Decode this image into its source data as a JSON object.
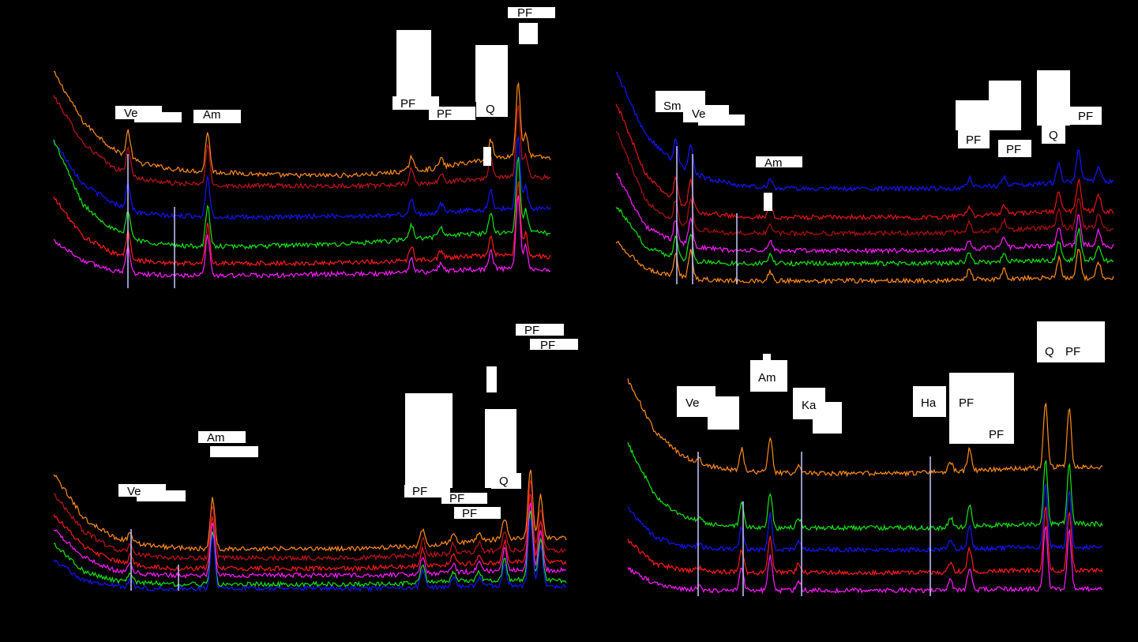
{
  "chart_data": [
    {
      "type": "line",
      "panel": "top-left",
      "series": [
        {
          "color": "#ff8c1a",
          "values": [
            0.92,
            0.55,
            0.35,
            0.24,
            0.2,
            0.18,
            0.17,
            0.16,
            0.15,
            0.15,
            0.15,
            0.16,
            0.18,
            0.2,
            0.24,
            0.28,
            0.3,
            0.28
          ]
        },
        {
          "color": "#c0141c",
          "values": [
            0.8,
            0.45,
            0.27,
            0.18,
            0.15,
            0.14,
            0.13,
            0.13,
            0.13,
            0.13,
            0.13,
            0.13,
            0.14,
            0.15,
            0.17,
            0.19,
            0.2,
            0.19
          ]
        },
        {
          "color": "#1414ff",
          "values": [
            0.66,
            0.34,
            0.2,
            0.12,
            0.1,
            0.1,
            0.09,
            0.09,
            0.09,
            0.1,
            0.1,
            0.1,
            0.11,
            0.12,
            0.14,
            0.15,
            0.16,
            0.15
          ]
        },
        {
          "color": "#14e614",
          "values": [
            0.88,
            0.4,
            0.22,
            0.13,
            0.1,
            0.09,
            0.09,
            0.09,
            0.1,
            0.1,
            0.11,
            0.12,
            0.14,
            0.16,
            0.18,
            0.19,
            0.2,
            0.19
          ]
        },
        {
          "color": "#ff1a1a",
          "values": [
            0.56,
            0.27,
            0.15,
            0.09,
            0.07,
            0.07,
            0.07,
            0.07,
            0.07,
            0.07,
            0.08,
            0.08,
            0.09,
            0.1,
            0.12,
            0.13,
            0.13,
            0.12
          ]
        },
        {
          "color": "#ff1aff",
          "values": [
            0.3,
            0.15,
            0.08,
            0.05,
            0.04,
            0.04,
            0.04,
            0.04,
            0.04,
            0.05,
            0.05,
            0.05,
            0.06,
            0.07,
            0.08,
            0.09,
            0.09,
            0.08
          ]
        }
      ],
      "peak_labels": [
        "Ve",
        "Am",
        "PF",
        "PF",
        "Q",
        "PF"
      ]
    },
    {
      "type": "line",
      "panel": "top-right",
      "series": [
        {
          "color": "#1414ff",
          "values": [
            0.95,
            0.5,
            0.3,
            0.2,
            0.15,
            0.13,
            0.12,
            0.12,
            0.12,
            0.12,
            0.12,
            0.12,
            0.13,
            0.14,
            0.15,
            0.16,
            0.18,
            0.17
          ]
        },
        {
          "color": "#e61414",
          "values": [
            0.9,
            0.4,
            0.2,
            0.12,
            0.1,
            0.09,
            0.09,
            0.09,
            0.09,
            0.09,
            0.09,
            0.09,
            0.1,
            0.11,
            0.12,
            0.13,
            0.14,
            0.13
          ]
        },
        {
          "color": "#b01010",
          "values": [
            0.8,
            0.3,
            0.15,
            0.09,
            0.07,
            0.07,
            0.07,
            0.07,
            0.07,
            0.07,
            0.07,
            0.07,
            0.08,
            0.09,
            0.1,
            0.11,
            0.11,
            0.1
          ]
        },
        {
          "color": "#ff1aff",
          "values": [
            0.6,
            0.22,
            0.11,
            0.07,
            0.05,
            0.05,
            0.05,
            0.05,
            0.05,
            0.05,
            0.05,
            0.05,
            0.06,
            0.07,
            0.08,
            0.08,
            0.09,
            0.08
          ]
        },
        {
          "color": "#14e614",
          "values": [
            0.45,
            0.16,
            0.08,
            0.05,
            0.04,
            0.04,
            0.04,
            0.04,
            0.04,
            0.04,
            0.04,
            0.04,
            0.05,
            0.05,
            0.06,
            0.06,
            0.07,
            0.06
          ]
        },
        {
          "color": "#ff8c1a",
          "values": [
            0.3,
            0.1,
            0.05,
            0.03,
            0.02,
            0.02,
            0.02,
            0.02,
            0.02,
            0.02,
            0.02,
            0.02,
            0.03,
            0.03,
            0.04,
            0.04,
            0.04,
            0.04
          ]
        }
      ],
      "peak_labels": [
        "Sm",
        "Ve",
        "Am",
        "PF",
        "PF",
        "Q",
        "PF"
      ]
    },
    {
      "type": "line",
      "panel": "bottom-left",
      "series": [
        {
          "color": "#ff8c1a",
          "values": [
            0.7,
            0.35,
            0.2,
            0.14,
            0.12,
            0.11,
            0.11,
            0.11,
            0.11,
            0.11,
            0.11,
            0.12,
            0.13,
            0.15,
            0.17,
            0.19,
            0.2,
            0.19
          ]
        },
        {
          "color": "#c0141c",
          "values": [
            0.6,
            0.3,
            0.16,
            0.11,
            0.09,
            0.09,
            0.09,
            0.09,
            0.09,
            0.09,
            0.09,
            0.1,
            0.11,
            0.12,
            0.14,
            0.15,
            0.16,
            0.15
          ]
        },
        {
          "color": "#ff1a1a",
          "values": [
            0.5,
            0.24,
            0.13,
            0.09,
            0.07,
            0.07,
            0.07,
            0.07,
            0.07,
            0.07,
            0.07,
            0.08,
            0.09,
            0.1,
            0.11,
            0.12,
            0.13,
            0.12
          ]
        },
        {
          "color": "#ff1aff",
          "values": [
            0.42,
            0.2,
            0.1,
            0.07,
            0.06,
            0.06,
            0.06,
            0.06,
            0.06,
            0.06,
            0.06,
            0.06,
            0.07,
            0.08,
            0.09,
            0.1,
            0.1,
            0.1
          ]
        },
        {
          "color": "#14e614",
          "values": [
            0.36,
            0.14,
            0.07,
            0.05,
            0.04,
            0.04,
            0.04,
            0.04,
            0.04,
            0.04,
            0.04,
            0.04,
            0.05,
            0.06,
            0.07,
            0.07,
            0.08,
            0.07
          ]
        },
        {
          "color": "#1414ff",
          "values": [
            0.25,
            0.08,
            0.04,
            0.02,
            0.02,
            0.02,
            0.02,
            0.02,
            0.02,
            0.02,
            0.02,
            0.02,
            0.03,
            0.03,
            0.04,
            0.04,
            0.04,
            0.04
          ]
        }
      ],
      "peak_labels": [
        "Ve",
        "Am",
        "PF",
        "PF",
        "PF",
        "Q",
        "PF",
        "PF"
      ]
    },
    {
      "type": "line",
      "panel": "bottom-right",
      "series": [
        {
          "color": "#ff8c1a",
          "values": [
            0.95,
            0.5,
            0.3,
            0.22,
            0.18,
            0.17,
            0.16,
            0.16,
            0.16,
            0.16,
            0.16,
            0.17,
            0.18,
            0.19,
            0.2,
            0.21,
            0.22,
            0.21
          ]
        },
        {
          "color": "#14e614",
          "values": [
            0.8,
            0.35,
            0.18,
            0.12,
            0.1,
            0.09,
            0.09,
            0.09,
            0.09,
            0.09,
            0.09,
            0.09,
            0.1,
            0.11,
            0.12,
            0.12,
            0.13,
            0.12
          ]
        },
        {
          "color": "#1414ff",
          "values": [
            0.4,
            0.15,
            0.08,
            0.06,
            0.05,
            0.05,
            0.05,
            0.05,
            0.05,
            0.05,
            0.05,
            0.05,
            0.06,
            0.06,
            0.07,
            0.07,
            0.07,
            0.07
          ]
        },
        {
          "color": "#ff1a1a",
          "values": [
            0.3,
            0.1,
            0.05,
            0.04,
            0.03,
            0.03,
            0.03,
            0.03,
            0.03,
            0.03,
            0.03,
            0.03,
            0.04,
            0.04,
            0.05,
            0.05,
            0.05,
            0.05
          ]
        },
        {
          "color": "#ff1aff",
          "values": [
            0.2,
            0.07,
            0.03,
            0.02,
            0.02,
            0.02,
            0.02,
            0.02,
            0.02,
            0.02,
            0.02,
            0.02,
            0.02,
            0.03,
            0.03,
            0.03,
            0.03,
            0.03
          ]
        }
      ],
      "peak_labels": [
        "Ve",
        "Am",
        "Ka",
        "Ha",
        "PF",
        "PF",
        "Q",
        "PF"
      ]
    }
  ]
}
